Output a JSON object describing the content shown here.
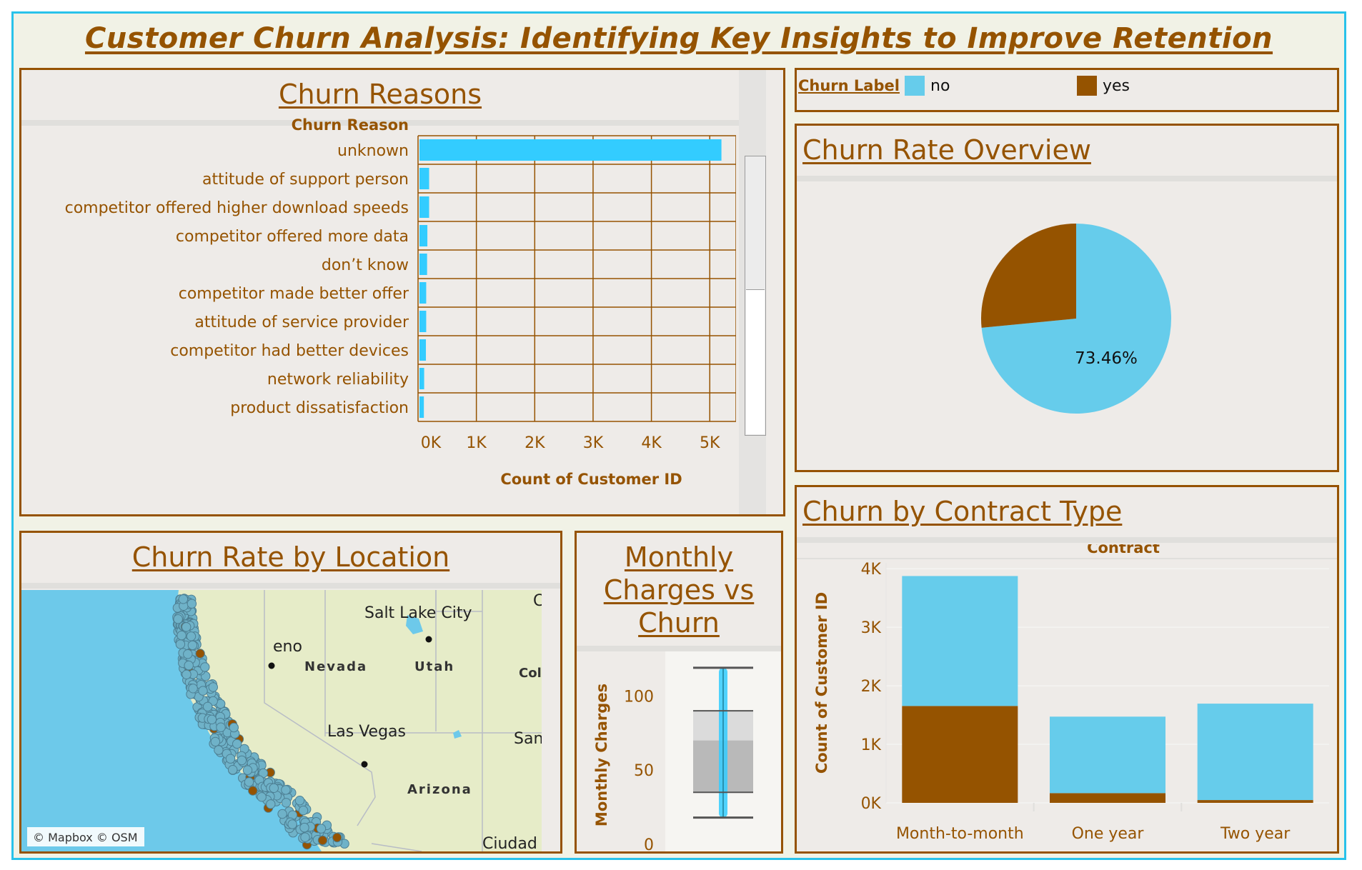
{
  "title": "Customer Churn Analysis: Identifying Key Insights to Improve Retention",
  "colors": {
    "no": "#33ccff",
    "no_pie": "#66cceb",
    "yes": "#955300",
    "accent": "#29c2ea"
  },
  "legend": {
    "title": "Churn Label",
    "items": [
      {
        "label": "no",
        "color": "#66cceb"
      },
      {
        "label": "yes",
        "color": "#955300"
      }
    ]
  },
  "panels": {
    "reasons": {
      "title": "Churn Reasons"
    },
    "overview": {
      "title": "Churn Rate Overview"
    },
    "contract": {
      "title": "Churn by Contract Type"
    },
    "location": {
      "title": "Churn Rate by Location"
    },
    "monthly": {
      "title_lines": [
        "Monthly",
        "Charges vs",
        "Churn"
      ]
    }
  },
  "map": {
    "attribution": "© Mapbox © OSM",
    "labels": [
      "Salt Lake City",
      "Nevada",
      "Utah",
      "Las Vegas",
      "Arizona",
      "Col",
      "San",
      "Ciudad",
      "eno",
      "C"
    ]
  },
  "chart_data": [
    {
      "type": "bar",
      "orientation": "horizontal",
      "title": "Churn Reasons",
      "row_header": "Churn Reason",
      "xlabel": "Count of Customer ID",
      "categories": [
        "unknown",
        "attitude of support person",
        "competitor offered higher download speeds",
        "competitor offered more data",
        "don’t know",
        "competitor made better offer",
        "attitude of service provider",
        "competitor had better devices",
        "network reliability",
        "product dissatisfaction"
      ],
      "values": [
        5200,
        190,
        190,
        160,
        155,
        140,
        140,
        135,
        105,
        100
      ],
      "xticks": [
        "0K",
        "1K",
        "2K",
        "3K",
        "4K",
        "5K"
      ],
      "xlim": [
        0,
        5450
      ]
    },
    {
      "type": "pie",
      "title": "Churn Rate Overview",
      "labels": [
        "no",
        "yes"
      ],
      "values": [
        73.46,
        26.54
      ],
      "data_label": "73.46%"
    },
    {
      "type": "bar",
      "stacked": true,
      "title": "Churn by Contract Type",
      "header": "Contract",
      "ylabel": "Count of Customer ID",
      "categories": [
        "Month-to-month",
        "One year",
        "Two year"
      ],
      "series": [
        {
          "name": "yes",
          "values": [
            1655,
            166,
            48
          ]
        },
        {
          "name": "no",
          "values": [
            2220,
            1307,
            1647
          ]
        }
      ],
      "yticks": [
        "0K",
        "1K",
        "2K",
        "3K",
        "4K"
      ],
      "ylim": [
        0,
        4100
      ]
    },
    {
      "type": "box",
      "title": "Monthly Charges vs Churn",
      "ylabel": "Monthly Charges",
      "yticks": [
        "0",
        "50",
        "100"
      ],
      "min": 18,
      "q1": 35,
      "median": 70,
      "q3": 90,
      "max": 119,
      "ylim": [
        0,
        130
      ]
    }
  ]
}
